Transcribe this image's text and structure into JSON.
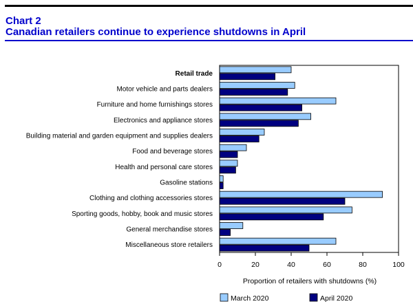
{
  "header": {
    "chart_label": "Chart 2",
    "title": "Canadian retailers continue to experience shutdowns in April"
  },
  "colors": {
    "title": "#0000cc",
    "march": "#99ccff",
    "april": "#000080"
  },
  "chart_data": {
    "type": "bar",
    "orientation": "horizontal",
    "title": "Canadian retailers continue to experience shutdowns in April",
    "xlabel": "Proportion of retailers with shutdowns (%)",
    "ylabel": "",
    "xlim": [
      0,
      100
    ],
    "xticks": [
      0,
      20,
      40,
      60,
      80,
      100
    ],
    "grid": false,
    "legend_position": "bottom",
    "categories": [
      "Retail trade",
      "Motor vehicle and parts dealers",
      "Furniture and home furnishings stores",
      "Electronics and appliance stores",
      "Building material and garden equipment and supplies dealers",
      "Food and beverage stores",
      "Health and personal care stores",
      "Gasoline stations",
      "Clothing and clothing accessories stores",
      "Sporting goods, hobby, book and music stores",
      "General merchandise stores",
      "Miscellaneous store retailers"
    ],
    "bold_categories": [
      "Retail trade"
    ],
    "series": [
      {
        "name": "March 2020",
        "values": [
          40,
          42,
          65,
          51,
          25,
          15,
          10,
          2,
          91,
          74,
          13,
          65
        ]
      },
      {
        "name": "April 2020",
        "values": [
          31,
          38,
          46,
          44,
          22,
          10,
          9,
          2,
          70,
          58,
          6,
          50
        ]
      }
    ]
  }
}
